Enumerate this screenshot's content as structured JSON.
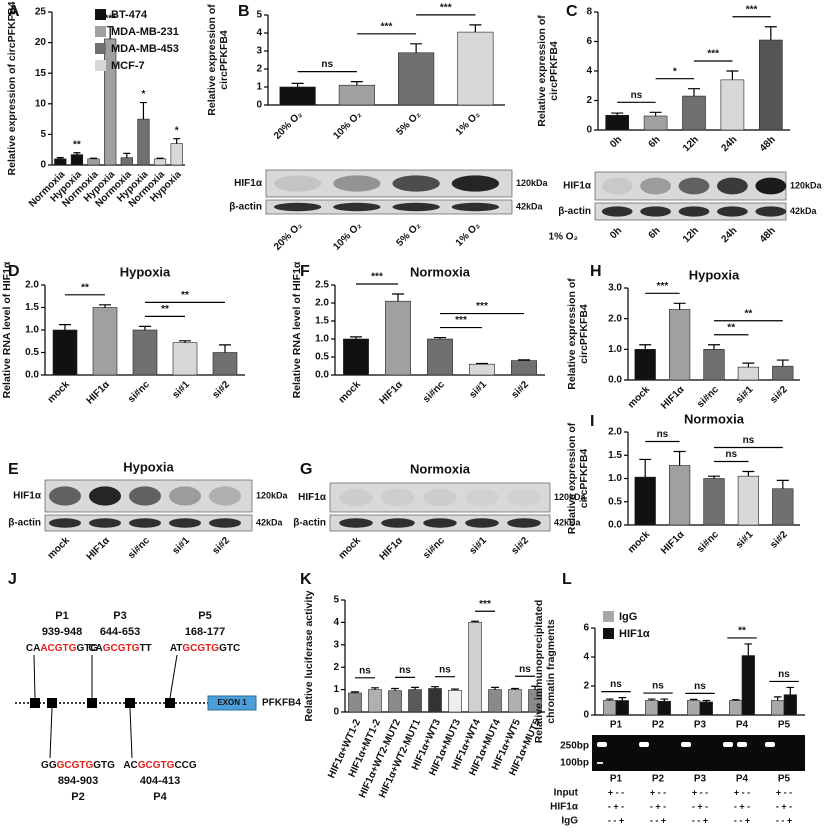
{
  "panel_labels": [
    "A",
    "B",
    "C",
    "D",
    "E",
    "F",
    "G",
    "H",
    "I",
    "J",
    "K",
    "L"
  ],
  "chart_data": [
    {
      "type": "bar",
      "ylabel": [
        "Relative expression of circPFKFB4"
      ],
      "categories": [
        "Normoxia",
        "Hypoxia",
        "Normoxia",
        "Hypoxia",
        "Normoxia",
        "Hypoxia",
        "Normoxia",
        "Hypoxia"
      ],
      "series": [
        {
          "name": "BT-474",
          "color": "#111111",
          "values": [
            1,
            1.7,
            null,
            null,
            null,
            null,
            null,
            null
          ],
          "errors": [
            0.2,
            0.3,
            null,
            null,
            null,
            null,
            null,
            null
          ]
        },
        {
          "name": "MDA-MB-231",
          "color": "#a0a0a0",
          "values": [
            null,
            null,
            1,
            20.6,
            null,
            null,
            null,
            null
          ],
          "errors": [
            null,
            null,
            0.1,
            2,
            null,
            null,
            null,
            null
          ]
        },
        {
          "name": "MDA-MB-453",
          "color": "#707070",
          "values": [
            null,
            null,
            null,
            null,
            1.2,
            7.5,
            null,
            null
          ],
          "errors": [
            null,
            null,
            null,
            null,
            0.7,
            2.7,
            null,
            null
          ]
        },
        {
          "name": "MCF-7",
          "color": "#d8d8d8",
          "values": [
            null,
            null,
            null,
            null,
            null,
            null,
            1,
            3.5
          ],
          "errors": [
            null,
            null,
            null,
            null,
            null,
            null,
            0.1,
            0.8
          ]
        }
      ],
      "ylim": [
        0,
        25
      ],
      "yticks": [
        0,
        5,
        10,
        15,
        20,
        25
      ],
      "legend": "upper right",
      "annotations": [
        {
          "text": "**",
          "at": 1
        },
        {
          "text": "***",
          "at": 3
        },
        {
          "text": "*",
          "at": 5
        },
        {
          "text": "*",
          "at": 7
        }
      ]
    },
    {
      "type": "bar",
      "ylabel": [
        "Relative expression of",
        "circPFKFB4"
      ],
      "categories": [
        "20% O₂",
        "10% O₂",
        "5% O₂",
        "1% O₂"
      ],
      "values": [
        1,
        1.1,
        2.9,
        4.05
      ],
      "errors": [
        0.2,
        0.2,
        0.5,
        0.4
      ],
      "colors": [
        "#111111",
        "#a0a0a0",
        "#707070",
        "#d8d8d8"
      ],
      "ylim": [
        0,
        5
      ],
      "yticks": [
        0,
        1,
        2,
        3,
        4,
        5
      ],
      "annotations": [
        {
          "text": "ns",
          "from": 0,
          "to": 1
        },
        {
          "text": "***",
          "from": 1,
          "to": 2
        },
        {
          "text": "***",
          "from": 2,
          "to": 3
        }
      ]
    },
    {
      "type": "bar",
      "ylabel": [
        "Relative expression of",
        "circPFKFB4"
      ],
      "categories": [
        "0h",
        "6h",
        "12h",
        "24h",
        "48h"
      ],
      "values": [
        1,
        0.95,
        2.3,
        3.4,
        6.1
      ],
      "errors": [
        0.15,
        0.25,
        0.5,
        0.6,
        0.9
      ],
      "colors": [
        "#111111",
        "#a0a0a0",
        "#707070",
        "#d8d8d8",
        "#555555"
      ],
      "ylim": [
        0,
        8
      ],
      "yticks": [
        0,
        2,
        4,
        6,
        8
      ],
      "annotations": [
        {
          "text": "ns",
          "from": 0,
          "to": 1
        },
        {
          "text": "*",
          "from": 1,
          "to": 2
        },
        {
          "text": "***",
          "from": 2,
          "to": 3
        },
        {
          "text": "***",
          "from": 3,
          "to": 4
        }
      ]
    },
    {
      "type": "bar",
      "title": "Hypoxia",
      "ylabel": [
        "Relative RNA level of HIF1α"
      ],
      "categories": [
        "mock",
        "HIF1α",
        "si#nc",
        "si#1",
        "si#2"
      ],
      "values": [
        1.0,
        1.5,
        1.0,
        0.72,
        0.5
      ],
      "errors": [
        0.12,
        0.06,
        0.08,
        0.04,
        0.17
      ],
      "colors": [
        "#111111",
        "#a0a0a0",
        "#707070",
        "#d8d8d8",
        "#707070"
      ],
      "ylim": [
        0,
        2
      ],
      "yticks": [
        {
          "value": 0,
          "label": "0.0"
        },
        {
          "value": 0.5,
          "label": "0.5"
        },
        {
          "value": 1,
          "label": "1.0"
        },
        {
          "value": 1.5,
          "label": "1.5"
        },
        {
          "value": 2,
          "label": "2.0"
        }
      ],
      "annotations": [
        {
          "text": "**",
          "from": 0,
          "to": 1
        },
        {
          "text": "**",
          "from": 2,
          "to": 3
        },
        {
          "text": "**",
          "from": 2,
          "to": 4
        }
      ]
    },
    {
      "type": "bar",
      "title": "Normoxia",
      "ylabel": [
        "Relative RNA level of HIF1α"
      ],
      "categories": [
        "mock",
        "HIF1α",
        "si#nc",
        "si#1",
        "si#2"
      ],
      "values": [
        1.0,
        2.05,
        1.0,
        0.3,
        0.4
      ],
      "errors": [
        0.06,
        0.2,
        0.04,
        0.02,
        0.02
      ],
      "colors": [
        "#111111",
        "#a0a0a0",
        "#707070",
        "#d8d8d8",
        "#707070"
      ],
      "ylim": [
        0,
        2.5
      ],
      "yticks": [
        {
          "value": 0,
          "label": "0.0"
        },
        {
          "value": 0.5,
          "label": "0.5"
        },
        {
          "value": 1,
          "label": "1.0"
        },
        {
          "value": 1.5,
          "label": "1.5"
        },
        {
          "value": 2,
          "label": "2.0"
        },
        {
          "value": 2.5,
          "label": "2.5"
        }
      ],
      "annotations": [
        {
          "text": "***",
          "from": 0,
          "to": 1
        },
        {
          "text": "***",
          "from": 2,
          "to": 3
        },
        {
          "text": "***",
          "from": 2,
          "to": 4
        }
      ]
    },
    {
      "type": "bar",
      "title": "Hypoxia",
      "ylabel": [
        "Relative expression of",
        "circPFKFB4"
      ],
      "categories": [
        "mock",
        "HIF1α",
        "si#nc",
        "si#1",
        "si#2"
      ],
      "values": [
        1.0,
        2.3,
        1.0,
        0.42,
        0.45
      ],
      "errors": [
        0.15,
        0.2,
        0.15,
        0.13,
        0.2
      ],
      "colors": [
        "#111111",
        "#a0a0a0",
        "#707070",
        "#d8d8d8",
        "#707070"
      ],
      "ylim": [
        0,
        3
      ],
      "yticks": [
        {
          "value": 0,
          "label": "0.0"
        },
        {
          "value": 1,
          "label": "1.0"
        },
        {
          "value": 2,
          "label": "2.0"
        },
        {
          "value": 3,
          "label": "3.0"
        }
      ],
      "annotations": [
        {
          "text": "***",
          "from": 0,
          "to": 1
        },
        {
          "text": "**",
          "from": 2,
          "to": 3
        },
        {
          "text": "**",
          "from": 2,
          "to": 4
        }
      ]
    },
    {
      "type": "bar",
      "title": "Normoxia",
      "ylabel": [
        "Relative expression of",
        "circPFKFB4"
      ],
      "categories": [
        "mock",
        "HIF1α",
        "si#nc",
        "si#1",
        "si#2"
      ],
      "values": [
        1.03,
        1.28,
        1.0,
        1.05,
        0.78
      ],
      "errors": [
        0.38,
        0.3,
        0.05,
        0.1,
        0.18
      ],
      "colors": [
        "#111111",
        "#a0a0a0",
        "#707070",
        "#d8d8d8",
        "#707070"
      ],
      "ylim": [
        0,
        2
      ],
      "yticks": [
        {
          "value": 0,
          "label": "0.0"
        },
        {
          "value": 0.5,
          "label": "0.5"
        },
        {
          "value": 1,
          "label": "1.0"
        },
        {
          "value": 1.5,
          "label": "1.5"
        },
        {
          "value": 2,
          "label": "2.0"
        }
      ],
      "annotations": [
        {
          "text": "ns",
          "from": 0,
          "to": 1
        },
        {
          "text": "ns",
          "from": 2,
          "to": 3
        },
        {
          "text": "ns",
          "from": 2,
          "to": 4
        }
      ]
    },
    {
      "type": "bar",
      "ylabel": [
        "Relative luciferase activity"
      ],
      "categories": [
        "HIF1α+WT1-2",
        "HIF1α+MT1-2",
        "HIF1α+WT2-MUT2",
        "HIF1α+WT2-MUT1",
        "HIF1α+WT3",
        "HIF1α+MUT3",
        "HIF1α+WT4",
        "HIF1α+MUT4",
        "HIF1α+WT5",
        "HIF1α+MUT5"
      ],
      "values": [
        0.85,
        1.0,
        0.95,
        1.0,
        1.05,
        0.97,
        4.0,
        1.0,
        1.0,
        1.0
      ],
      "errors": [
        0.05,
        0.08,
        0.1,
        0.1,
        0.08,
        0.05,
        0.05,
        0.1,
        0.05,
        0.15
      ],
      "colors": [
        "#8a8a8a",
        "#b0b0b0",
        "#8a8a8a",
        "#5a5a5a",
        "#333333",
        "#eeeeee",
        "#d0d0d0",
        "#8a8a8a",
        "#b0b0b0",
        "#8a8a8a"
      ],
      "ylim": [
        0,
        5
      ],
      "yticks": [
        0,
        1,
        2,
        3,
        4,
        5
      ],
      "annotations": [
        {
          "text": "ns",
          "from": 0,
          "to": 1
        },
        {
          "text": "ns",
          "from": 2,
          "to": 3
        },
        {
          "text": "ns",
          "from": 4,
          "to": 5
        },
        {
          "text": "***",
          "from": 6,
          "to": 7
        },
        {
          "text": "ns",
          "from": 8,
          "to": 9
        }
      ]
    },
    {
      "type": "bar",
      "ylabel": [
        "Relative immunoprecipitated",
        "chromatin fragments"
      ],
      "categories": [
        "P1",
        "P2",
        "P3",
        "P4",
        "P5"
      ],
      "series": [
        {
          "name": "IgG",
          "color": "#a8a8a8",
          "values": [
            1,
            1,
            1,
            1,
            1
          ],
          "errors": [
            0.1,
            0.1,
            0.08,
            0.05,
            0.25
          ]
        },
        {
          "name": "HIF1α",
          "color": "#111111",
          "values": [
            1,
            0.95,
            0.9,
            4.1,
            1.4
          ],
          "errors": [
            0.2,
            0.15,
            0.1,
            0.8,
            0.5
          ]
        }
      ],
      "ylim": [
        0,
        6
      ],
      "yticks": [
        0,
        2,
        4,
        6
      ],
      "legend": "upper left",
      "annotations": [
        {
          "text": "ns",
          "at": 0
        },
        {
          "text": "ns",
          "at": 1
        },
        {
          "text": "ns",
          "at": 2
        },
        {
          "text": "**",
          "at": 3
        },
        {
          "text": "ns",
          "at": 4
        }
      ]
    }
  ],
  "blots": [
    {
      "rows": [
        "HIF1α",
        "β-actin"
      ],
      "sizes": [
        "120kDa",
        "42kDa"
      ]
    },
    {
      "rows": [
        "HIF1α",
        "β-actin"
      ],
      "sizes": [
        "120kDa",
        "42kDa"
      ],
      "condition": "1% O₂"
    },
    {
      "rows": [
        "HIF1α",
        "β-actin"
      ],
      "sizes": [
        "120kDa",
        "42kDa"
      ]
    },
    {
      "rows": [
        "HIF1α",
        "β-actin"
      ],
      "sizes": [
        "120kDa",
        "42kDa"
      ]
    }
  ],
  "gel": {
    "markers": [
      "250bp",
      "100bp"
    ],
    "rows": [
      {
        "label": "Input",
        "signs": "+ - -"
      },
      {
        "label": "HIF1α",
        "signs": "- + -"
      },
      {
        "label": "IgG",
        "signs": "- - +"
      }
    ]
  },
  "diagram": {
    "exon": "EXON 1",
    "gene": "PFKFB4",
    "sites": [
      {
        "name": "P1",
        "range": "939-948",
        "seq": [
          "CA",
          "ACGTG",
          "GTG"
        ]
      },
      {
        "name": "P2",
        "range": "894-903",
        "seq": [
          "GG",
          "GCGTG",
          "GTG"
        ]
      },
      {
        "name": "P3",
        "range": "644-653",
        "seq": [
          "CA",
          "GCGTG",
          "TT"
        ]
      },
      {
        "name": "P4",
        "range": "404-413",
        "seq": [
          "AC",
          "GCGTG",
          "CCG"
        ]
      },
      {
        "name": "P5",
        "range": "168-177",
        "seq": [
          "AT",
          "GCGTG",
          "GTC"
        ]
      }
    ]
  }
}
